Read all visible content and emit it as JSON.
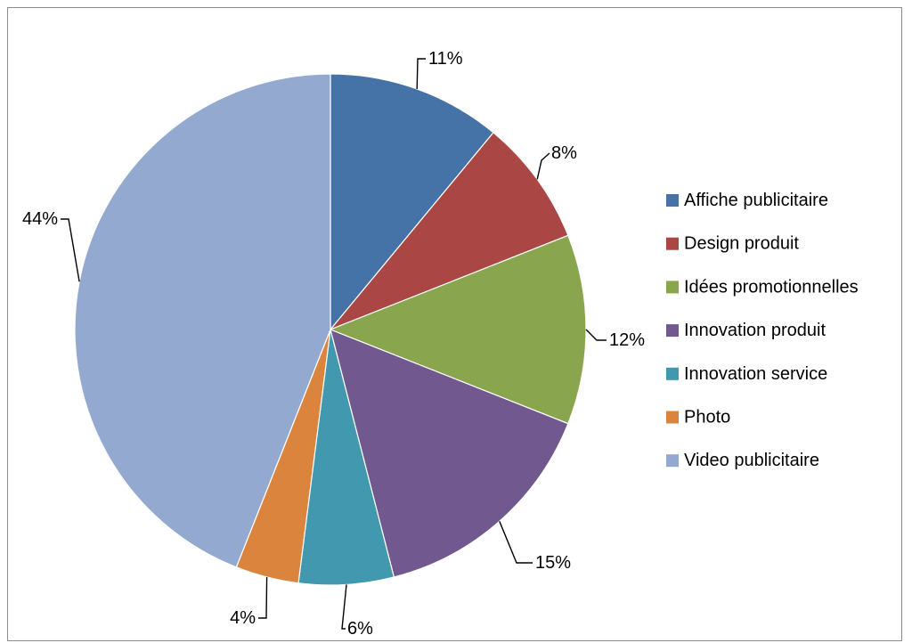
{
  "chart_data": {
    "type": "pie",
    "title": "",
    "start_angle_deg": 0,
    "direction": "clockwise",
    "legend_position": "right",
    "slices": [
      {
        "label": "Affiche publicitaire",
        "value": 11,
        "display": "11%",
        "color": "#4572a7"
      },
      {
        "label": "Design produit",
        "value": 8,
        "display": "8%",
        "color": "#aa4643"
      },
      {
        "label": "Idées promotionnelles",
        "value": 12,
        "display": "12%",
        "color": "#89a54e"
      },
      {
        "label": "Innovation produit",
        "value": 15,
        "display": "15%",
        "color": "#71588f"
      },
      {
        "label": "Innovation service",
        "value": 6,
        "display": "6%",
        "color": "#4198af"
      },
      {
        "label": "Photo",
        "value": 4,
        "display": "4%",
        "color": "#db843d"
      },
      {
        "label": "Video publicitaire",
        "value": 44,
        "display": "44%",
        "color": "#93a9cf"
      }
    ]
  }
}
